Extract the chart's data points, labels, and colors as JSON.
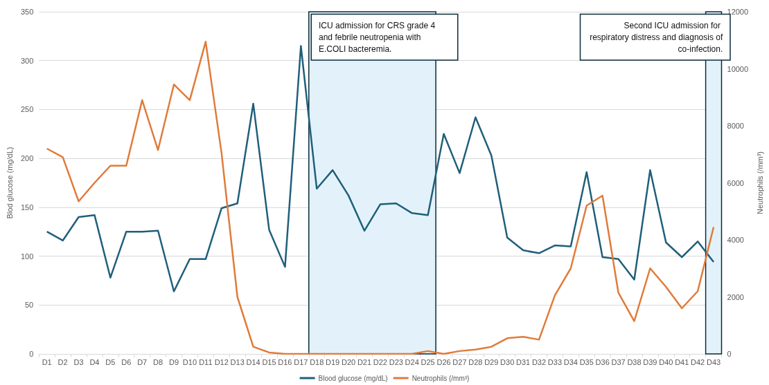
{
  "chart_data": {
    "type": "line",
    "ylabel": "Blod glucose (mg/dL)",
    "y2label": "Neutrophils (/mm³)",
    "categories": [
      "D1",
      "D2",
      "D3",
      "D4",
      "D5",
      "D6",
      "D7",
      "D8",
      "D9",
      "D10",
      "D11",
      "D12",
      "D13",
      "D14",
      "D15",
      "D16",
      "D17",
      "D18",
      "D19",
      "D20",
      "D21",
      "D22",
      "D23",
      "D24",
      "D25",
      "D26",
      "D27",
      "D28",
      "D29",
      "D30",
      "D31",
      "D32",
      "D33",
      "D34",
      "D35",
      "D36",
      "D37",
      "D38",
      "D39",
      "D40",
      "D41",
      "D42",
      "D43"
    ],
    "series": [
      {
        "name": "Blood glucose (mg/dL)",
        "color": "#1f5f7a",
        "values": [
          125,
          116,
          140,
          142,
          78,
          125,
          125,
          126,
          64,
          97,
          97,
          149,
          154,
          256,
          127,
          89,
          315,
          169,
          188,
          162,
          126,
          153,
          154,
          144,
          142,
          225,
          185,
          242,
          203,
          119,
          106,
          103,
          111,
          110,
          186,
          99,
          97,
          76,
          188,
          114,
          99,
          115,
          94
        ]
      },
      {
        "name": "Neutrophils (/mm³)",
        "color": "#e07b39",
        "axis": "y2",
        "values": [
          7200,
          6900,
          5350,
          6000,
          6600,
          6600,
          8900,
          7150,
          9450,
          8900,
          10950,
          7050,
          2000,
          250,
          50,
          0,
          0,
          0,
          0,
          0,
          0,
          0,
          0,
          0,
          100,
          0,
          100,
          150,
          250,
          550,
          600,
          500,
          2050,
          3000,
          5200,
          5550,
          2150,
          1150,
          3000,
          2350,
          1600,
          2200,
          4450
        ]
      }
    ],
    "ylim": [
      0,
      350
    ],
    "yticks": [
      0,
      50,
      100,
      150,
      200,
      250,
      300,
      350
    ],
    "y2lim": [
      0,
      12000
    ],
    "y2ticks": [
      0,
      2000,
      4000,
      6000,
      8000,
      10000,
      12000
    ],
    "grid": "y",
    "legend": "bottom",
    "marker": "none",
    "line_style": "solid",
    "bands": [
      {
        "axis": "x",
        "from": "D18",
        "to": "D25",
        "color": "#e3f2fa",
        "label": "ICU admission for CRS grade 4 and febrile neutropenia with E.COLI bacteremia."
      },
      {
        "axis": "x",
        "from": "D43",
        "to": "D43",
        "color": "#e3f2fa",
        "label": "Second ICU admission for respiratory distress and diagnosis of co-infection."
      }
    ]
  }
}
